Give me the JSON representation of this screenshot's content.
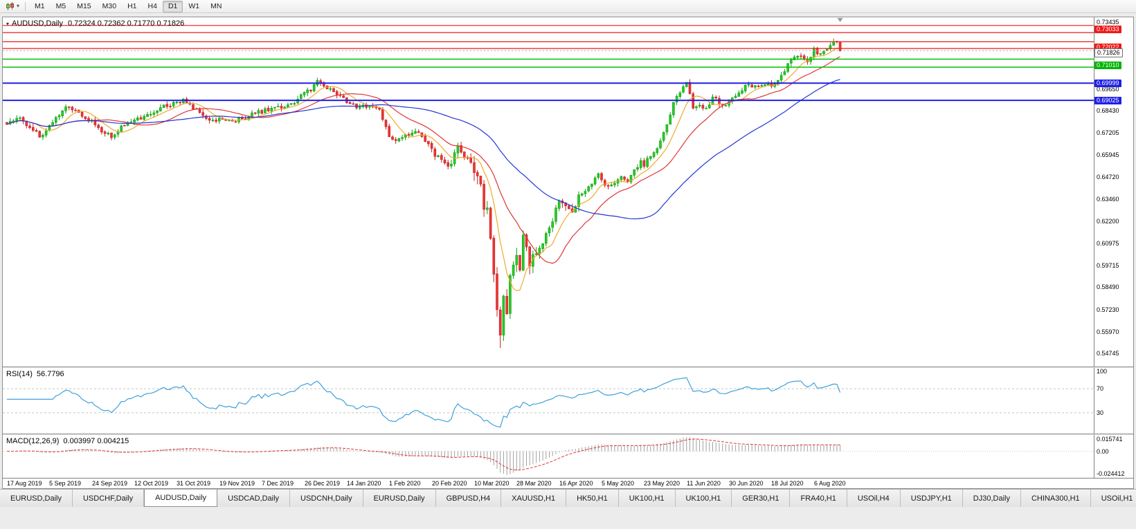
{
  "toolbar": {
    "timeframes": [
      "M1",
      "M5",
      "M15",
      "M30",
      "H1",
      "H4",
      "D1",
      "W1",
      "MN"
    ],
    "active_timeframe": "D1",
    "icons": {
      "chart_type": "candlestick-chart-icon",
      "dropdown": "chevron-down-icon"
    }
  },
  "chart": {
    "symbol_title": "AUDUSD,Daily",
    "ohlc_text": "0.72324 0.72362 0.71770 0.71826"
  },
  "rsi_pane": {
    "title": "RSI(14)",
    "value": "56.7796",
    "axis_labels": [
      {
        "text": "100",
        "level": 100
      },
      {
        "text": "70",
        "level": 70
      },
      {
        "text": "30",
        "level": 30
      }
    ],
    "dashed_levels": [
      70,
      30
    ],
    "line_color": "#3da0dd"
  },
  "macd_pane": {
    "title": "MACD(12,26,9)",
    "value": "0.003997 0.004215",
    "axis_top_label": "0.015741",
    "axis_zero_label": "0.00",
    "axis_bottom_label": "-0.024412",
    "histogram_color": "#a0a0a0",
    "signal_color": "#e03434"
  },
  "price_axis": {
    "labels": [
      {
        "text": "0.73435",
        "price": 0.73435
      },
      {
        "text": "0.69650",
        "price": 0.6965
      },
      {
        "text": "0.68430",
        "price": 0.6843
      },
      {
        "text": "0.67205",
        "price": 0.67205
      },
      {
        "text": "0.65945",
        "price": 0.65945
      },
      {
        "text": "0.64720",
        "price": 0.6472
      },
      {
        "text": "0.63460",
        "price": 0.6346
      },
      {
        "text": "0.62200",
        "price": 0.622
      },
      {
        "text": "0.60975",
        "price": 0.60975
      },
      {
        "text": "0.59715",
        "price": 0.59715
      },
      {
        "text": "0.58490",
        "price": 0.5849
      },
      {
        "text": "0.57230",
        "price": 0.5723
      },
      {
        "text": "0.55970",
        "price": 0.5597
      },
      {
        "text": "0.54745",
        "price": 0.54745
      }
    ],
    "tags": [
      {
        "text": "0.73033",
        "price": 0.73033,
        "bg": "#f01818",
        "fg": "#ffffff",
        "current": false
      },
      {
        "text": "0.72022",
        "price": 0.72022,
        "bg": "#f01818",
        "fg": "#ffffff",
        "current": false
      },
      {
        "text": "0.71010",
        "price": 0.7101,
        "bg": "#00b400",
        "fg": "#ffffff",
        "current": false
      },
      {
        "text": "0.69999",
        "price": 0.69999,
        "bg": "#1f1fe8",
        "fg": "#ffffff",
        "current": false
      },
      {
        "text": "0.69025",
        "price": 0.69025,
        "bg": "#1f1fe8",
        "fg": "#ffffff",
        "current": false
      },
      {
        "text": "0.71826",
        "price": 0.71826,
        "bg": "#ffffff",
        "fg": "#000000",
        "current": true
      }
    ]
  },
  "hlines": [
    {
      "price": 0.7325,
      "color": "#f21818",
      "width": 1.2
    },
    {
      "price": 0.7285,
      "color": "#f21818",
      "width": 1.2
    },
    {
      "price": 0.7233,
      "color": "#f21818",
      "width": 1.2
    },
    {
      "price": 0.7195,
      "color": "#f21818",
      "width": 1.2
    },
    {
      "price": 0.7135,
      "color": "#00c400",
      "width": 1.5
    },
    {
      "price": 0.709,
      "color": "#00c400",
      "width": 1.5
    },
    {
      "price": 0.69999,
      "color": "#1f1fe8",
      "width": 2
    },
    {
      "price": 0.69025,
      "color": "#1f1fe8",
      "width": 2
    }
  ],
  "current_price_line": {
    "price": 0.71826,
    "color": "#a8a8a8"
  },
  "date_axis": [
    "17 Aug 2019",
    "5 Sep 2019",
    "24 Sep 2019",
    "12 Oct 2019",
    "31 Oct 2019",
    "19 Nov 2019",
    "7 Dec 2019",
    "26 Dec 2019",
    "14 Jan 2020",
    "1 Feb 2020",
    "20 Feb 2020",
    "10 Mar 2020",
    "28 Mar 2020",
    "16 Apr 2020",
    "5 May 2020",
    "23 May 2020",
    "11 Jun 2020",
    "30 Jun 2020",
    "18 Jul 2020",
    "6 Aug 2020"
  ],
  "tabs": [
    "EURUSD,Daily",
    "USDCHF,Daily",
    "AUDUSD,Daily",
    "USDCAD,Daily",
    "USDCNH,Daily",
    "EURUSD,Daily",
    "GBPUSD,H4",
    "XAUUSD,H1",
    "HK50,H1",
    "UK100,H1",
    "UK100,H1",
    "GER30,H1",
    "FRA40,H1",
    "USOil,H4",
    "USDJPY,H1",
    "DJ30,Daily",
    "CHINA300,H1",
    "USOil,H1"
  ],
  "active_tab_index": 2,
  "chart_data": {
    "type": "candlestick",
    "symbol": "AUDUSD",
    "timeframe": "Daily",
    "title": "AUDUSD,Daily 0.72324 0.72362 0.71770 0.71826",
    "display_ohlc": {
      "open": 0.72324,
      "high": 0.72362,
      "low": 0.7177,
      "close": 0.71826
    },
    "view_price_range": [
      0.54015,
      0.7371
    ],
    "candle_count": 256,
    "up_color": "#27cc27",
    "up_border": "#0e9c0e",
    "down_color": "#ef3535",
    "down_border": "#c01f1f",
    "close_path_anchors": [
      [
        0,
        0.6765
      ],
      [
        4,
        0.68
      ],
      [
        7,
        0.6755
      ],
      [
        10,
        0.67
      ],
      [
        12,
        0.6722
      ],
      [
        15,
        0.6805
      ],
      [
        18,
        0.6875
      ],
      [
        21,
        0.6852
      ],
      [
        24,
        0.681
      ],
      [
        27,
        0.6768
      ],
      [
        30,
        0.6715
      ],
      [
        32,
        0.67
      ],
      [
        35,
        0.6748
      ],
      [
        39,
        0.6788
      ],
      [
        43,
        0.6818
      ],
      [
        47,
        0.6858
      ],
      [
        51,
        0.6888
      ],
      [
        54,
        0.6905
      ],
      [
        57,
        0.6862
      ],
      [
        60,
        0.6815
      ],
      [
        63,
        0.6792
      ],
      [
        66,
        0.6802
      ],
      [
        69,
        0.6782
      ],
      [
        72,
        0.68
      ],
      [
        75,
        0.6822
      ],
      [
        78,
        0.684
      ],
      [
        81,
        0.6852
      ],
      [
        84,
        0.6866
      ],
      [
        87,
        0.6878
      ],
      [
        90,
        0.693
      ],
      [
        93,
        0.6962
      ],
      [
        95,
        0.7005
      ],
      [
        97,
        0.6988
      ],
      [
        100,
        0.695
      ],
      [
        104,
        0.6895
      ],
      [
        108,
        0.6862
      ],
      [
        111,
        0.6872
      ],
      [
        114,
        0.684
      ],
      [
        117,
        0.6695
      ],
      [
        120,
        0.6682
      ],
      [
        123,
        0.6712
      ],
      [
        126,
        0.6722
      ],
      [
        129,
        0.6655
      ],
      [
        131,
        0.6602
      ],
      [
        133,
        0.6572
      ],
      [
        135,
        0.6515
      ],
      [
        137,
        0.6598
      ],
      [
        138,
        0.6645
      ],
      [
        140,
        0.658
      ],
      [
        142,
        0.6545
      ],
      [
        143,
        0.6492
      ],
      [
        145,
        0.6452
      ],
      [
        146,
        0.6312
      ],
      [
        147,
        0.629
      ],
      [
        148,
        0.611
      ],
      [
        149,
        0.59
      ],
      [
        150,
        0.5712
      ],
      [
        151,
        0.556
      ],
      [
        152,
        0.5798
      ],
      [
        153,
        0.5722
      ],
      [
        154,
        0.59
      ],
      [
        155,
        0.5968
      ],
      [
        156,
        0.6048
      ],
      [
        157,
        0.5962
      ],
      [
        158,
        0.6128
      ],
      [
        160,
        0.5992
      ],
      [
        162,
        0.6052
      ],
      [
        164,
        0.6092
      ],
      [
        166,
        0.618
      ],
      [
        168,
        0.6282
      ],
      [
        169,
        0.6348
      ],
      [
        171,
        0.6302
      ],
      [
        173,
        0.6282
      ],
      [
        175,
        0.6358
      ],
      [
        177,
        0.639
      ],
      [
        179,
        0.6432
      ],
      [
        181,
        0.6492
      ],
      [
        182,
        0.6455
      ],
      [
        184,
        0.6412
      ],
      [
        186,
        0.644
      ],
      [
        188,
        0.6476
      ],
      [
        190,
        0.6452
      ],
      [
        192,
        0.6502
      ],
      [
        194,
        0.6552
      ],
      [
        195,
        0.654
      ],
      [
        197,
        0.6592
      ],
      [
        199,
        0.6642
      ],
      [
        201,
        0.6722
      ],
      [
        203,
        0.6832
      ],
      [
        205,
        0.6936
      ],
      [
        207,
        0.6978
      ],
      [
        208,
        0.7005
      ],
      [
        209,
        0.6932
      ],
      [
        210,
        0.6862
      ],
      [
        212,
        0.6882
      ],
      [
        214,
        0.6856
      ],
      [
        216,
        0.6922
      ],
      [
        218,
        0.6892
      ],
      [
        220,
        0.6866
      ],
      [
        221,
        0.6902
      ],
      [
        223,
        0.6932
      ],
      [
        225,
        0.6962
      ],
      [
        227,
        0.7002
      ],
      [
        229,
        0.6976
      ],
      [
        231,
        0.6992
      ],
      [
        233,
        0.7002
      ],
      [
        235,
        0.6986
      ],
      [
        237,
        0.7042
      ],
      [
        239,
        0.7106
      ],
      [
        241,
        0.7142
      ],
      [
        243,
        0.7156
      ],
      [
        245,
        0.7126
      ],
      [
        247,
        0.7186
      ],
      [
        249,
        0.7156
      ],
      [
        251,
        0.7196
      ],
      [
        253,
        0.7236
      ],
      [
        254,
        0.7232
      ],
      [
        255,
        0.71826
      ]
    ],
    "moving_averages": [
      {
        "period": 8,
        "color": "#efaa2b"
      },
      {
        "period": 20,
        "color": "#e03434"
      },
      {
        "period": 50,
        "color": "#2336d4"
      }
    ],
    "rsi_current": 56.7796,
    "macd_current": [
      0.003997,
      0.004215
    ]
  }
}
